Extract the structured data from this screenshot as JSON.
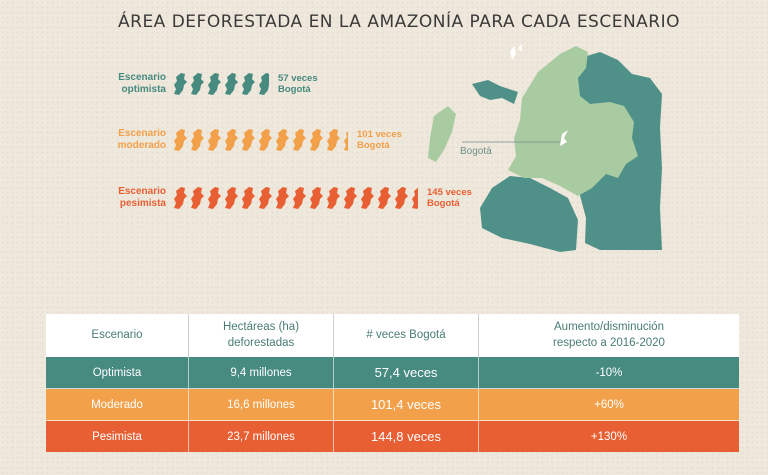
{
  "title": "ÁREA DEFORESTADA EN LA AMAZONÍA PARA CADA ESCENARIO",
  "colors": {
    "optimista": "#468a80",
    "moderado": "#f2a04a",
    "pesimista": "#e85f33",
    "map_light": "#a9cba2",
    "map_dark": "#4f9189"
  },
  "scenarios": [
    {
      "label_line1": "Escenario",
      "label_line2": "optimista",
      "times_line1": "57 veces",
      "times_line2": "Bogotá",
      "count": 57.4,
      "color": "#468a80"
    },
    {
      "label_line1": "Escenario",
      "label_line2": "moderado",
      "times_line1": "101 veces",
      "times_line2": "Bogotá",
      "count": 101.4,
      "color": "#f2a04a"
    },
    {
      "label_line1": "Escenario",
      "label_line2": "pesimista",
      "times_line1": "145 veces",
      "times_line2": "Bogotá",
      "count": 144.8,
      "color": "#e85f33"
    }
  ],
  "map": {
    "city_label": "Bogotá"
  },
  "table": {
    "headers": [
      "Escenario",
      "Hectáreas (ha) deforestadas",
      "# veces Bogotá",
      "Aumento/disminución respecto a 2016-2020"
    ],
    "header_lines": [
      [
        "Escenario"
      ],
      [
        "Hectáreas (ha)",
        "deforestadas"
      ],
      [
        "# veces Bogotá"
      ],
      [
        "Aumento/disminución",
        "respecto a 2016-2020"
      ]
    ],
    "rows": [
      [
        "Optimista",
        "9,4 millones",
        "57,4 veces",
        "-10%"
      ],
      [
        "Moderado",
        "16,6 millones",
        "101,4 veces",
        "+60%"
      ],
      [
        "Pesimista",
        "23,7 millones",
        "144,8 veces",
        "+130%"
      ]
    ]
  }
}
